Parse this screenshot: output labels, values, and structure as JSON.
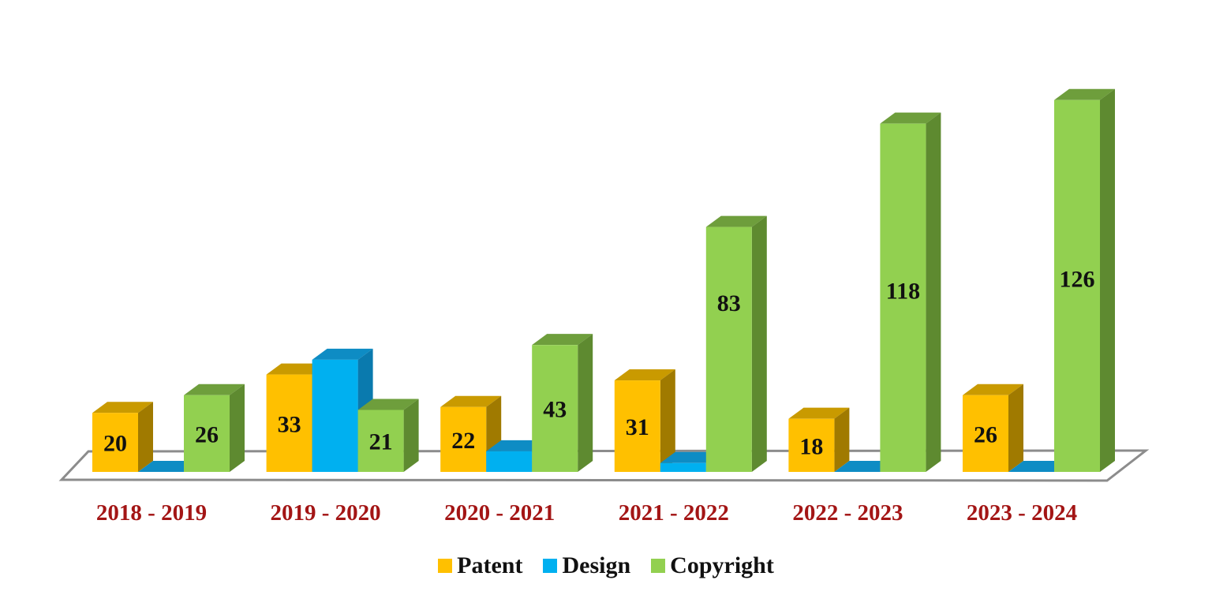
{
  "chart_data": {
    "type": "bar",
    "style": "3d-clustered-column",
    "title": "",
    "xlabel": "",
    "ylabel": "",
    "categories": [
      "2018 - 2019",
      "2019 - 2020",
      "2020 - 2021",
      "2021 - 2022",
      "2022 - 2023",
      "2023 - 2024"
    ],
    "series": [
      {
        "name": "Patent",
        "color": "#FFC000",
        "top_color": "#C99A00",
        "side_color": "#A07A00",
        "values": [
          20,
          33,
          22,
          31,
          18,
          26
        ],
        "labels": [
          "20",
          "33",
          "22",
          "31",
          "18",
          "26"
        ]
      },
      {
        "name": "Design",
        "color": "#00B0F0",
        "top_color": "#0E8CC4",
        "side_color": "#0A7AAE",
        "values": [
          0,
          38,
          7,
          3,
          0,
          0
        ],
        "labels": [
          "",
          "",
          "",
          "",
          "",
          ""
        ]
      },
      {
        "name": "Copyright",
        "color": "#92D050",
        "top_color": "#6E9E3C",
        "side_color": "#5E8A30",
        "values": [
          26,
          21,
          43,
          83,
          118,
          126
        ],
        "labels": [
          "26",
          "21",
          "43",
          "83",
          "118",
          "126"
        ]
      }
    ],
    "ylim": [
      0,
      130
    ],
    "grid": false,
    "axis_visible": false,
    "legend_position": "bottom",
    "category_label_color": "#A31515"
  },
  "legend": {
    "items": [
      {
        "label": "Patent",
        "color": "#FFC000"
      },
      {
        "label": "Design",
        "color": "#00B0F0"
      },
      {
        "label": "Copyright",
        "color": "#92D050"
      }
    ]
  }
}
